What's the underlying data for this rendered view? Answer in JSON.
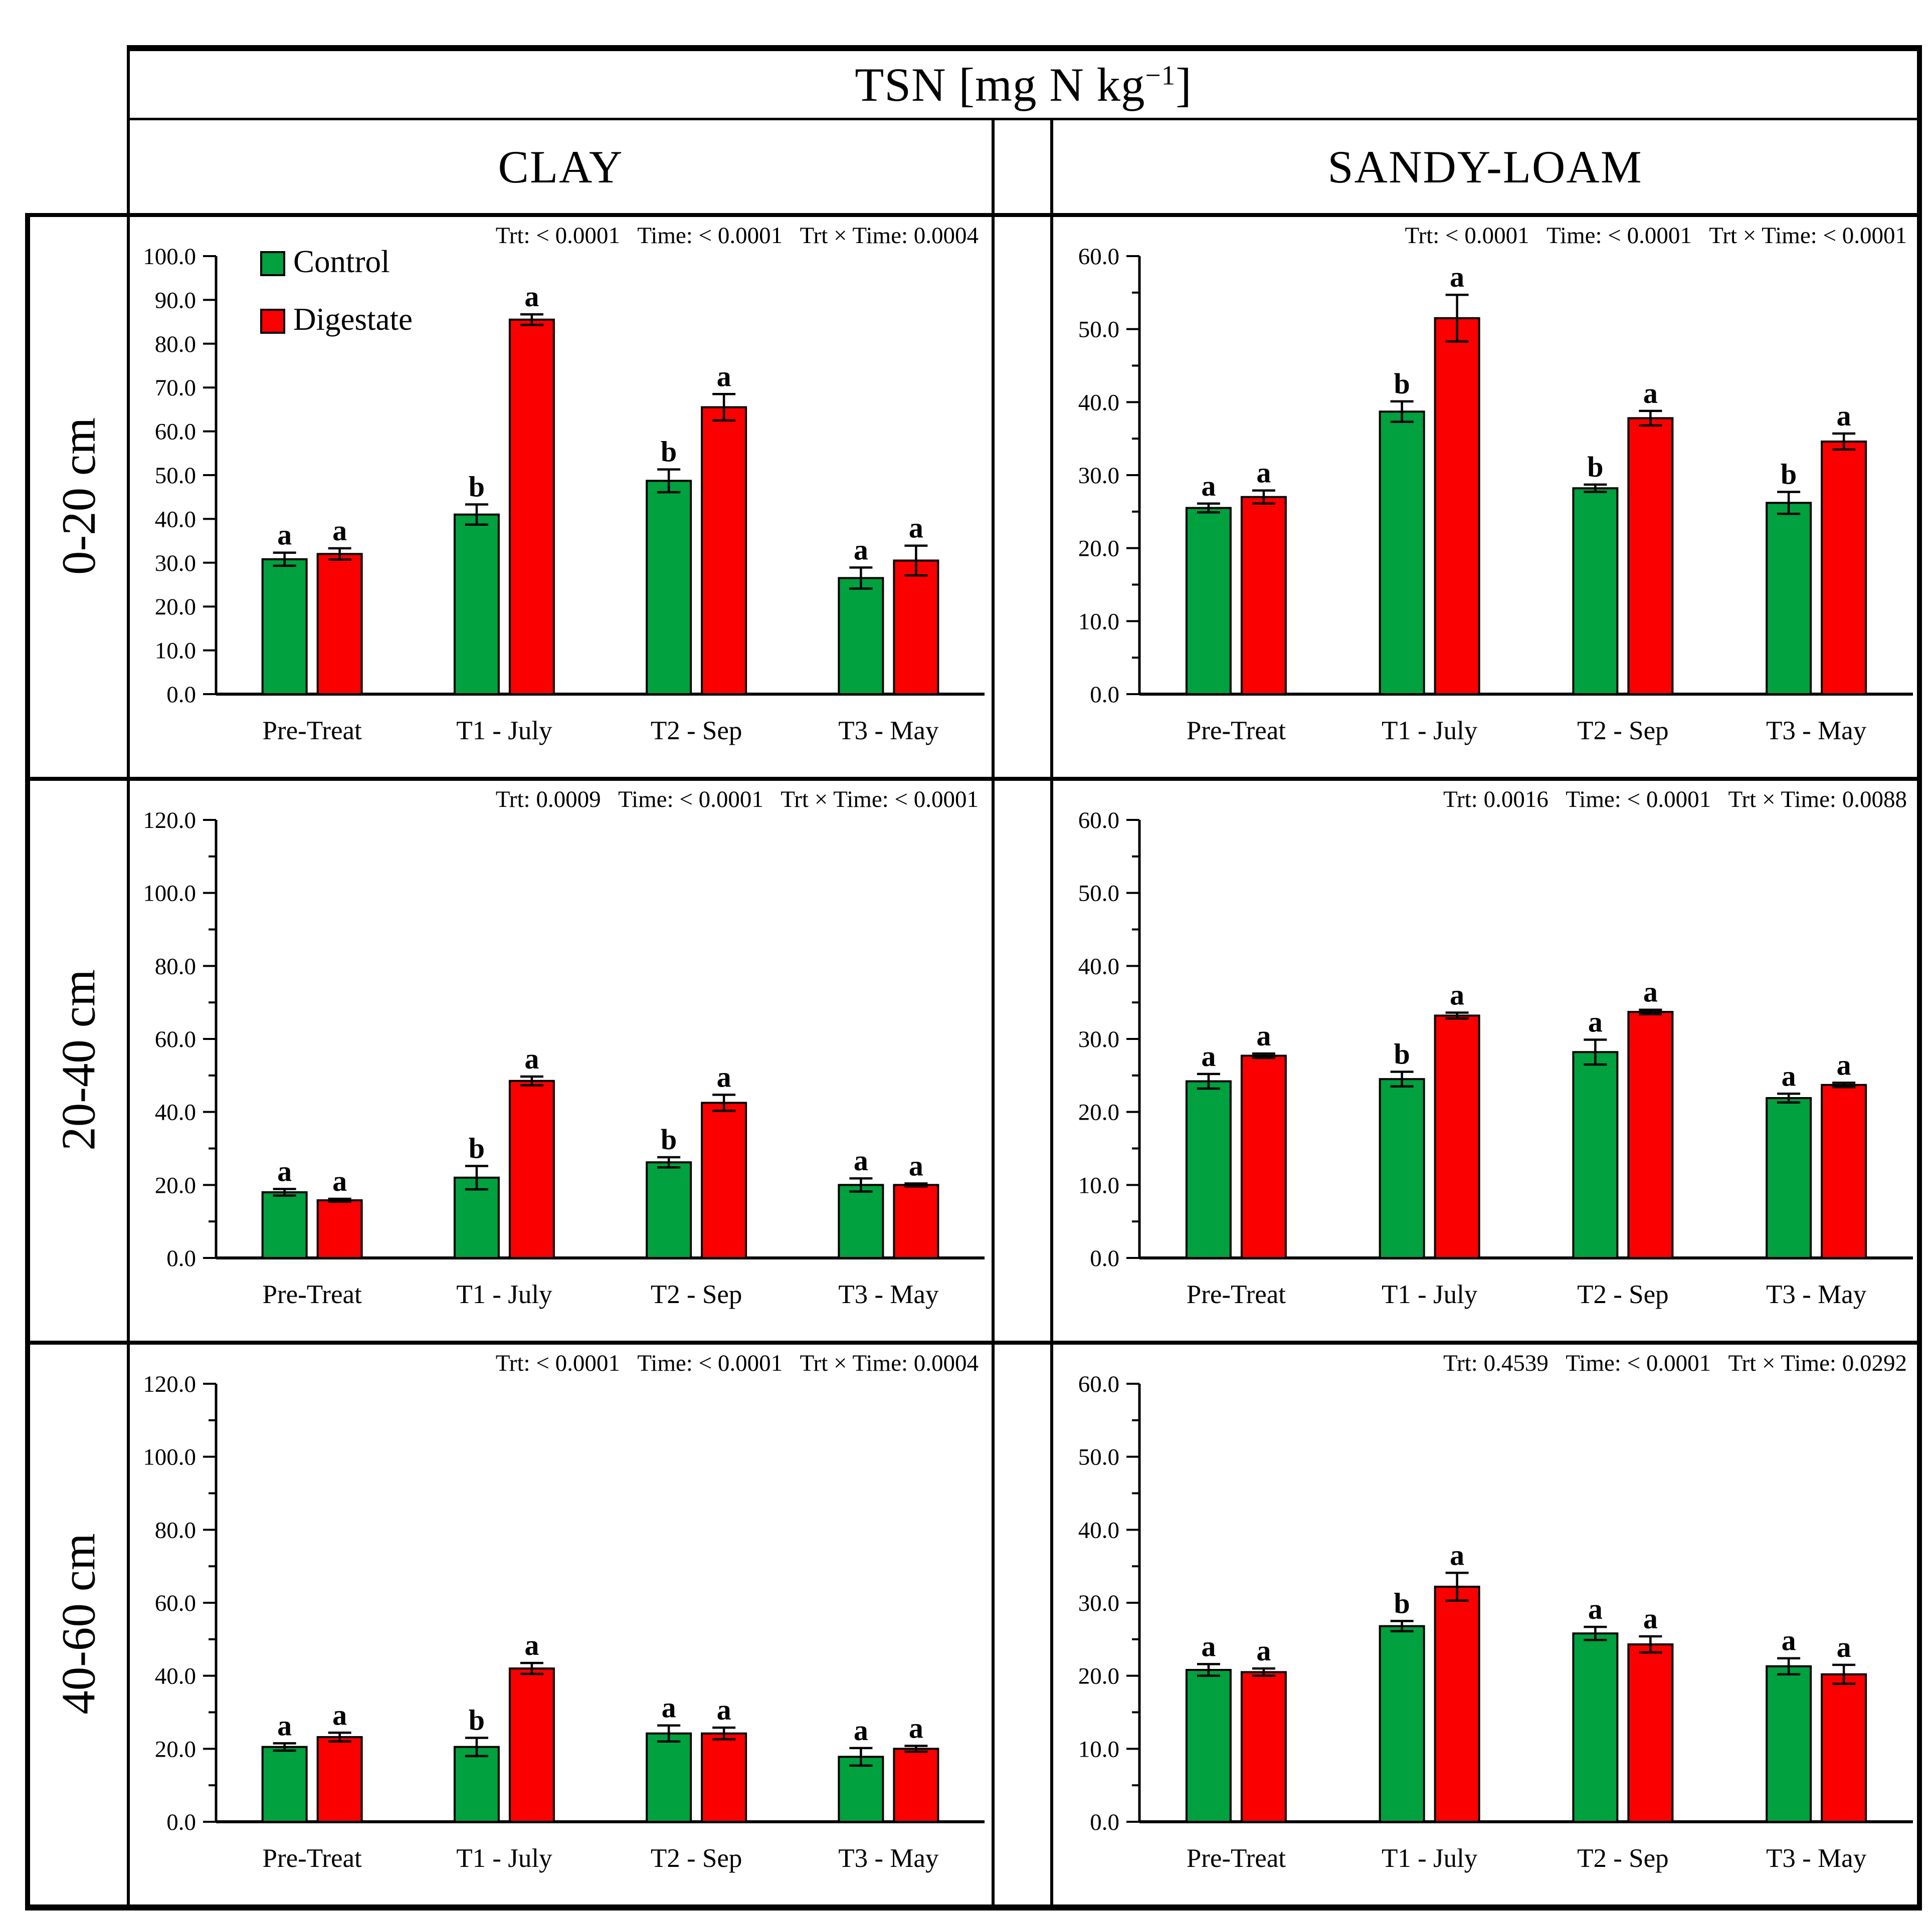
{
  "header": {
    "title_parts": {
      "base": "TSN [mg N kg",
      "superscript": "−1",
      "close": "]"
    },
    "columns": [
      "CLAY",
      "SANDY-LOAM"
    ]
  },
  "row_labels": [
    "0-20 cm",
    "20-40 cm",
    "40-60 cm"
  ],
  "legend": [
    {
      "label": "Control",
      "color": "#00A13E"
    },
    {
      "label": "Digestate",
      "color": "#FA0000"
    }
  ],
  "stats_labels": {
    "trt": "Trt:",
    "time": "Time:",
    "interaction": "Trt × Time:"
  },
  "categories": [
    "Pre-Treat",
    "T1 - July",
    "T2 - Sep",
    "T3 - May"
  ],
  "chart_data": [
    {
      "id": "clay-0-20",
      "type": "bar",
      "soil": "CLAY",
      "depth": "0-20 cm",
      "ylim": [
        0,
        100
      ],
      "ymajor": 10,
      "yminor": null,
      "show_legend": true,
      "stats": {
        "trt": "< 0.0001",
        "time": "< 0.0001",
        "interaction": "0.0004"
      },
      "categories": [
        "Pre-Treat",
        "T1 - July",
        "T2 - Sep",
        "T3 - May"
      ],
      "series": [
        {
          "name": "Control",
          "values": [
            30.8,
            41.0,
            48.7,
            26.5
          ],
          "errors": [
            1.5,
            2.3,
            2.6,
            2.4
          ],
          "letters": [
            "a",
            "b",
            "b",
            "a"
          ]
        },
        {
          "name": "Digestate",
          "values": [
            32.0,
            85.5,
            65.5,
            30.5
          ],
          "errors": [
            1.3,
            1.2,
            3.0,
            3.4
          ],
          "letters": [
            "a",
            "a",
            "a",
            "a"
          ]
        }
      ]
    },
    {
      "id": "sandy-0-20",
      "type": "bar",
      "soil": "SANDY-LOAM",
      "depth": "0-20 cm",
      "ylim": [
        0,
        60
      ],
      "ymajor": 10,
      "yminor": 5,
      "show_legend": false,
      "stats": {
        "trt": "< 0.0001",
        "time": "< 0.0001",
        "interaction": "< 0.0001"
      },
      "categories": [
        "Pre-Treat",
        "T1 - July",
        "T2 - Sep",
        "T3 - May"
      ],
      "series": [
        {
          "name": "Control",
          "values": [
            25.5,
            38.7,
            28.2,
            26.2
          ],
          "errors": [
            0.6,
            1.4,
            0.5,
            1.5
          ],
          "letters": [
            "a",
            "b",
            "b",
            "b"
          ]
        },
        {
          "name": "Digestate",
          "values": [
            27.0,
            51.5,
            37.8,
            34.6
          ],
          "errors": [
            0.9,
            3.2,
            1.0,
            1.1
          ],
          "letters": [
            "a",
            "a",
            "a",
            "a"
          ]
        }
      ]
    },
    {
      "id": "clay-20-40",
      "type": "bar",
      "soil": "CLAY",
      "depth": "20-40 cm",
      "ylim": [
        0,
        120
      ],
      "ymajor": 20,
      "yminor": 10,
      "show_legend": false,
      "stats": {
        "trt": "0.0009",
        "time": "< 0.0001",
        "interaction": "< 0.0001"
      },
      "categories": [
        "Pre-Treat",
        "T1 - July",
        "T2 - Sep",
        "T3 - May"
      ],
      "series": [
        {
          "name": "Control",
          "values": [
            18.0,
            22.0,
            26.2,
            20.0
          ],
          "errors": [
            0.9,
            3.2,
            1.4,
            1.8
          ],
          "letters": [
            "a",
            "b",
            "b",
            "a"
          ]
        },
        {
          "name": "Digestate",
          "values": [
            15.8,
            48.5,
            42.5,
            20.0
          ],
          "errors": [
            0.4,
            1.2,
            2.2,
            0.4
          ],
          "letters": [
            "a",
            "a",
            "a",
            "a"
          ]
        }
      ]
    },
    {
      "id": "sandy-20-40",
      "type": "bar",
      "soil": "SANDY-LOAM",
      "depth": "20-40 cm",
      "ylim": [
        0,
        60
      ],
      "ymajor": 10,
      "yminor": 5,
      "show_legend": false,
      "stats": {
        "trt": "0.0016",
        "time": "< 0.0001",
        "interaction": "0.0088"
      },
      "categories": [
        "Pre-Treat",
        "T1 - July",
        "T2 - Sep",
        "T3 - May"
      ],
      "series": [
        {
          "name": "Control",
          "values": [
            24.2,
            24.5,
            28.2,
            21.9
          ],
          "errors": [
            1.0,
            1.0,
            1.7,
            0.6
          ],
          "letters": [
            "a",
            "b",
            "a",
            "a"
          ]
        },
        {
          "name": "Digestate",
          "values": [
            27.7,
            33.2,
            33.7,
            23.7
          ],
          "errors": [
            0.3,
            0.4,
            0.3,
            0.3
          ],
          "letters": [
            "a",
            "a",
            "a",
            "a"
          ]
        }
      ]
    },
    {
      "id": "clay-40-60",
      "type": "bar",
      "soil": "CLAY",
      "depth": "40-60 cm",
      "ylim": [
        0,
        120
      ],
      "ymajor": 20,
      "yminor": 10,
      "show_legend": false,
      "stats": {
        "trt": "< 0.0001",
        "time": "< 0.0001",
        "interaction": "0.0004"
      },
      "categories": [
        "Pre-Treat",
        "T1 - July",
        "T2 - Sep",
        "T3 - May"
      ],
      "series": [
        {
          "name": "Control",
          "values": [
            20.5,
            20.5,
            24.2,
            17.8
          ],
          "errors": [
            1.0,
            2.5,
            2.2,
            2.4
          ],
          "letters": [
            "a",
            "b",
            "a",
            "a"
          ]
        },
        {
          "name": "Digestate",
          "values": [
            23.2,
            42.0,
            24.2,
            20.0
          ],
          "errors": [
            1.2,
            1.5,
            1.6,
            0.8
          ],
          "letters": [
            "a",
            "a",
            "a",
            "a"
          ]
        }
      ]
    },
    {
      "id": "sandy-40-60",
      "type": "bar",
      "soil": "SANDY-LOAM",
      "depth": "40-60 cm",
      "ylim": [
        0,
        60
      ],
      "ymajor": 10,
      "yminor": 5,
      "show_legend": false,
      "stats": {
        "trt": "0.4539",
        "time": "< 0.0001",
        "interaction": "0.0292"
      },
      "categories": [
        "Pre-Treat",
        "T1 - July",
        "T2 - Sep",
        "T3 - May"
      ],
      "series": [
        {
          "name": "Control",
          "values": [
            20.8,
            26.8,
            25.8,
            21.3
          ],
          "errors": [
            0.8,
            0.7,
            0.9,
            1.1
          ],
          "letters": [
            "a",
            "b",
            "a",
            "a"
          ]
        },
        {
          "name": "Digestate",
          "values": [
            20.5,
            32.2,
            24.3,
            20.2
          ],
          "errors": [
            0.5,
            1.9,
            1.1,
            1.3
          ],
          "letters": [
            "a",
            "a",
            "a",
            "a"
          ]
        }
      ]
    }
  ]
}
